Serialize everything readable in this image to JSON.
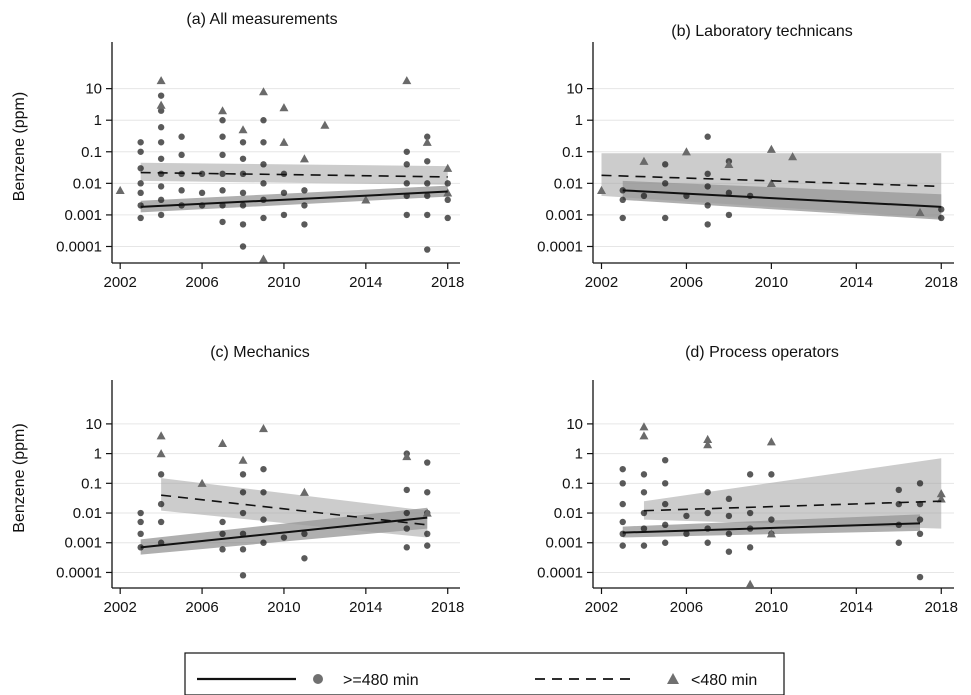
{
  "chart_data": [
    {
      "type": "scatter",
      "title": "(a) All measurements",
      "ylabel": "Benzene (ppm)",
      "yscale": "log",
      "ylim": [
        3e-05,
        300
      ],
      "xlim": [
        2001.6,
        2018.6
      ],
      "xticks": [
        "2002",
        "2006",
        "2010",
        "2014",
        "2018"
      ],
      "yticks": [
        "0.0001",
        "0.001",
        "0.01",
        "0.1",
        "1",
        "10"
      ],
      "series": [
        {
          "label": ">=480 min",
          "marker": "circle",
          "fit": {
            "x": [
              2003,
              2018
            ],
            "y": [
              0.0018,
              0.0055
            ]
          },
          "ci_lower": [
            0.0012,
            0.0038
          ],
          "ci_upper": [
            0.0028,
            0.0085
          ],
          "points": [
            [
              2003,
              0.002
            ],
            [
              2003,
              0.005
            ],
            [
              2003,
              0.01
            ],
            [
              2003,
              0.03
            ],
            [
              2003,
              0.1
            ],
            [
              2003,
              0.0008
            ],
            [
              2003,
              0.2
            ],
            [
              2004,
              0.001
            ],
            [
              2004,
              0.003
            ],
            [
              2004,
              0.008
            ],
            [
              2004,
              0.02
            ],
            [
              2004,
              0.06
            ],
            [
              2004,
              0.2
            ],
            [
              2004,
              0.6
            ],
            [
              2004,
              2
            ],
            [
              2004,
              6
            ],
            [
              2005,
              0.002
            ],
            [
              2005,
              0.006
            ],
            [
              2005,
              0.02
            ],
            [
              2005,
              0.08
            ],
            [
              2005,
              0.3
            ],
            [
              2006,
              0.002
            ],
            [
              2006,
              0.005
            ],
            [
              2006,
              0.02
            ],
            [
              2007,
              0.0006
            ],
            [
              2007,
              0.002
            ],
            [
              2007,
              0.006
            ],
            [
              2007,
              0.02
            ],
            [
              2007,
              0.08
            ],
            [
              2007,
              0.3
            ],
            [
              2007,
              1
            ],
            [
              2008,
              0.0001
            ],
            [
              2008,
              0.0005
            ],
            [
              2008,
              0.002
            ],
            [
              2008,
              0.005
            ],
            [
              2008,
              0.02
            ],
            [
              2008,
              0.06
            ],
            [
              2008,
              0.2
            ],
            [
              2009,
              0.0008
            ],
            [
              2009,
              0.003
            ],
            [
              2009,
              0.01
            ],
            [
              2009,
              0.04
            ],
            [
              2009,
              0.2
            ],
            [
              2009,
              1
            ],
            [
              2010,
              0.001
            ],
            [
              2010,
              0.005
            ],
            [
              2010,
              0.02
            ],
            [
              2011,
              0.0005
            ],
            [
              2011,
              0.002
            ],
            [
              2011,
              0.006
            ],
            [
              2016,
              0.001
            ],
            [
              2016,
              0.004
            ],
            [
              2016,
              0.01
            ],
            [
              2016,
              0.04
            ],
            [
              2016,
              0.1
            ],
            [
              2017,
              8e-05
            ],
            [
              2017,
              0.001
            ],
            [
              2017,
              0.004
            ],
            [
              2017,
              0.01
            ],
            [
              2017,
              0.05
            ],
            [
              2017,
              0.3
            ],
            [
              2018,
              0.0008
            ],
            [
              2018,
              0.003
            ],
            [
              2018,
              0.01
            ]
          ]
        },
        {
          "label": "<480 min",
          "marker": "triangle",
          "fit": {
            "x": [
              2003,
              2018
            ],
            "y": [
              0.022,
              0.016
            ]
          },
          "ci_lower": [
            0.012,
            0.009
          ],
          "ci_upper": [
            0.045,
            0.035
          ],
          "points": [
            [
              2002,
              0.006
            ],
            [
              2004,
              18
            ],
            [
              2004,
              3
            ],
            [
              2007,
              2
            ],
            [
              2008,
              0.5
            ],
            [
              2009,
              8
            ],
            [
              2009,
              4e-05
            ],
            [
              2010,
              2.5
            ],
            [
              2010,
              0.2
            ],
            [
              2011,
              0.06
            ],
            [
              2012,
              0.7
            ],
            [
              2014,
              0.003
            ],
            [
              2016,
              18
            ],
            [
              2017,
              0.2
            ],
            [
              2018,
              0.03
            ],
            [
              2018,
              0.005
            ]
          ]
        }
      ]
    },
    {
      "type": "scatter",
      "title": "(b) Laboratory technicans",
      "ylabel": "",
      "yscale": "log",
      "ylim": [
        3e-05,
        300
      ],
      "xlim": [
        2001.6,
        2018.6
      ],
      "xticks": [
        "2002",
        "2006",
        "2010",
        "2014",
        "2018"
      ],
      "yticks": [
        "0.0001",
        "0.001",
        "0.01",
        "0.1",
        "1",
        "10"
      ],
      "series": [
        {
          "label": ">=480 min",
          "marker": "circle",
          "fit": {
            "x": [
              2003,
              2018
            ],
            "y": [
              0.006,
              0.0018
            ]
          },
          "ci_lower": [
            0.003,
            0.0007
          ],
          "ci_upper": [
            0.012,
            0.0045
          ],
          "points": [
            [
              2003,
              0.0008
            ],
            [
              2003,
              0.003
            ],
            [
              2003,
              0.006
            ],
            [
              2004,
              0.004
            ],
            [
              2005,
              0.0008
            ],
            [
              2005,
              0.01
            ],
            [
              2005,
              0.04
            ],
            [
              2006,
              0.004
            ],
            [
              2007,
              0.0005
            ],
            [
              2007,
              0.002
            ],
            [
              2007,
              0.008
            ],
            [
              2007,
              0.02
            ],
            [
              2007,
              0.3
            ],
            [
              2008,
              0.001
            ],
            [
              2008,
              0.005
            ],
            [
              2008,
              0.05
            ],
            [
              2009,
              0.004
            ],
            [
              2018,
              0.0008
            ],
            [
              2018,
              0.0015
            ]
          ]
        },
        {
          "label": "<480 min",
          "marker": "triangle",
          "fit": {
            "x": [
              2002,
              2018
            ],
            "y": [
              0.018,
              0.008
            ]
          },
          "ci_lower": [
            0.004,
            0.0008
          ],
          "ci_upper": [
            0.09,
            0.09
          ],
          "points": [
            [
              2002,
              0.006
            ],
            [
              2004,
              0.05
            ],
            [
              2006,
              0.1
            ],
            [
              2008,
              0.04
            ],
            [
              2010,
              0.12
            ],
            [
              2010,
              0.01
            ],
            [
              2011,
              0.07
            ],
            [
              2017,
              0.0012
            ]
          ]
        }
      ]
    },
    {
      "type": "scatter",
      "title": "(c) Mechanics",
      "ylabel": "Benzene (ppm)",
      "yscale": "log",
      "ylim": [
        3e-05,
        300
      ],
      "xlim": [
        2001.6,
        2018.6
      ],
      "xticks": [
        "2002",
        "2006",
        "2010",
        "2014",
        "2018"
      ],
      "yticks": [
        "0.0001",
        "0.001",
        "0.01",
        "0.1",
        "1",
        "10"
      ],
      "series": [
        {
          "label": ">=480 min",
          "marker": "circle",
          "fit": {
            "x": [
              2003,
              2017
            ],
            "y": [
              0.0007,
              0.007
            ]
          },
          "ci_lower": [
            0.0004,
            0.003
          ],
          "ci_upper": [
            0.0013,
            0.015
          ],
          "points": [
            [
              2003,
              0.0007
            ],
            [
              2003,
              0.002
            ],
            [
              2003,
              0.005
            ],
            [
              2003,
              0.01
            ],
            [
              2004,
              0.001
            ],
            [
              2004,
              0.005
            ],
            [
              2004,
              0.02
            ],
            [
              2004,
              0.2
            ],
            [
              2007,
              0.0006
            ],
            [
              2007,
              0.002
            ],
            [
              2007,
              0.005
            ],
            [
              2008,
              8e-05
            ],
            [
              2008,
              0.0006
            ],
            [
              2008,
              0.002
            ],
            [
              2008,
              0.01
            ],
            [
              2008,
              0.05
            ],
            [
              2008,
              0.2
            ],
            [
              2009,
              0.001
            ],
            [
              2009,
              0.006
            ],
            [
              2009,
              0.05
            ],
            [
              2009,
              0.3
            ],
            [
              2010,
              0.0015
            ],
            [
              2011,
              0.0003
            ],
            [
              2011,
              0.002
            ],
            [
              2016,
              0.0007
            ],
            [
              2016,
              0.003
            ],
            [
              2016,
              0.01
            ],
            [
              2016,
              0.06
            ],
            [
              2016,
              1
            ],
            [
              2017,
              0.0008
            ],
            [
              2017,
              0.002
            ],
            [
              2017,
              0.01
            ],
            [
              2017,
              0.05
            ],
            [
              2017,
              0.5
            ]
          ]
        },
        {
          "label": "<480 min",
          "marker": "triangle",
          "fit": {
            "x": [
              2004,
              2017
            ],
            "y": [
              0.04,
              0.004
            ]
          },
          "ci_lower": [
            0.012,
            0.0015
          ],
          "ci_upper": [
            0.15,
            0.012
          ],
          "points": [
            [
              2004,
              4
            ],
            [
              2004,
              1
            ],
            [
              2006,
              0.1
            ],
            [
              2007,
              2.2
            ],
            [
              2008,
              0.6
            ],
            [
              2009,
              7
            ],
            [
              2011,
              0.05
            ],
            [
              2016,
              0.8
            ],
            [
              2017,
              0.01
            ]
          ]
        }
      ]
    },
    {
      "type": "scatter",
      "title": "(d) Process operators",
      "ylabel": "",
      "yscale": "log",
      "ylim": [
        3e-05,
        300
      ],
      "xlim": [
        2001.6,
        2018.6
      ],
      "xticks": [
        "2002",
        "2006",
        "2010",
        "2014",
        "2018"
      ],
      "yticks": [
        "0.0001",
        "0.001",
        "0.01",
        "0.1",
        "1",
        "10"
      ],
      "series": [
        {
          "label": ">=480 min",
          "marker": "circle",
          "fit": {
            "x": [
              2003,
              2017
            ],
            "y": [
              0.0022,
              0.0045
            ]
          },
          "ci_lower": [
            0.0015,
            0.0025
          ],
          "ci_upper": [
            0.0035,
            0.009
          ],
          "points": [
            [
              2003,
              0.0008
            ],
            [
              2003,
              0.002
            ],
            [
              2003,
              0.005
            ],
            [
              2003,
              0.02
            ],
            [
              2003,
              0.1
            ],
            [
              2003,
              0.3
            ],
            [
              2004,
              0.0008
            ],
            [
              2004,
              0.003
            ],
            [
              2004,
              0.01
            ],
            [
              2004,
              0.05
            ],
            [
              2004,
              0.2
            ],
            [
              2005,
              0.001
            ],
            [
              2005,
              0.004
            ],
            [
              2005,
              0.02
            ],
            [
              2005,
              0.1
            ],
            [
              2005,
              0.6
            ],
            [
              2006,
              0.002
            ],
            [
              2006,
              0.008
            ],
            [
              2007,
              0.001
            ],
            [
              2007,
              0.003
            ],
            [
              2007,
              0.01
            ],
            [
              2007,
              0.05
            ],
            [
              2008,
              0.0005
            ],
            [
              2008,
              0.002
            ],
            [
              2008,
              0.008
            ],
            [
              2008,
              0.03
            ],
            [
              2009,
              0.0007
            ],
            [
              2009,
              0.003
            ],
            [
              2009,
              0.01
            ],
            [
              2009,
              0.2
            ],
            [
              2010,
              0.002
            ],
            [
              2010,
              0.006
            ],
            [
              2010,
              0.2
            ],
            [
              2016,
              0.001
            ],
            [
              2016,
              0.004
            ],
            [
              2016,
              0.02
            ],
            [
              2016,
              0.06
            ],
            [
              2017,
              7e-05
            ],
            [
              2017,
              0.002
            ],
            [
              2017,
              0.006
            ],
            [
              2017,
              0.02
            ],
            [
              2017,
              0.1
            ]
          ]
        },
        {
          "label": "<480 min",
          "marker": "triangle",
          "fit": {
            "x": [
              2004,
              2018
            ],
            "y": [
              0.012,
              0.025
            ]
          },
          "ci_lower": [
            0.006,
            0.003
          ],
          "ci_upper": [
            0.025,
            0.7
          ],
          "points": [
            [
              2004,
              8
            ],
            [
              2004,
              4
            ],
            [
              2007,
              3
            ],
            [
              2007,
              2
            ],
            [
              2009,
              4e-05
            ],
            [
              2010,
              2.5
            ],
            [
              2010,
              0.002
            ],
            [
              2018,
              0.045
            ],
            [
              2018,
              0.03
            ]
          ]
        }
      ]
    }
  ],
  "legend": {
    "solid_label": ">=480 min",
    "dashed_label": "<480 min",
    "placement": "bottom-center"
  }
}
